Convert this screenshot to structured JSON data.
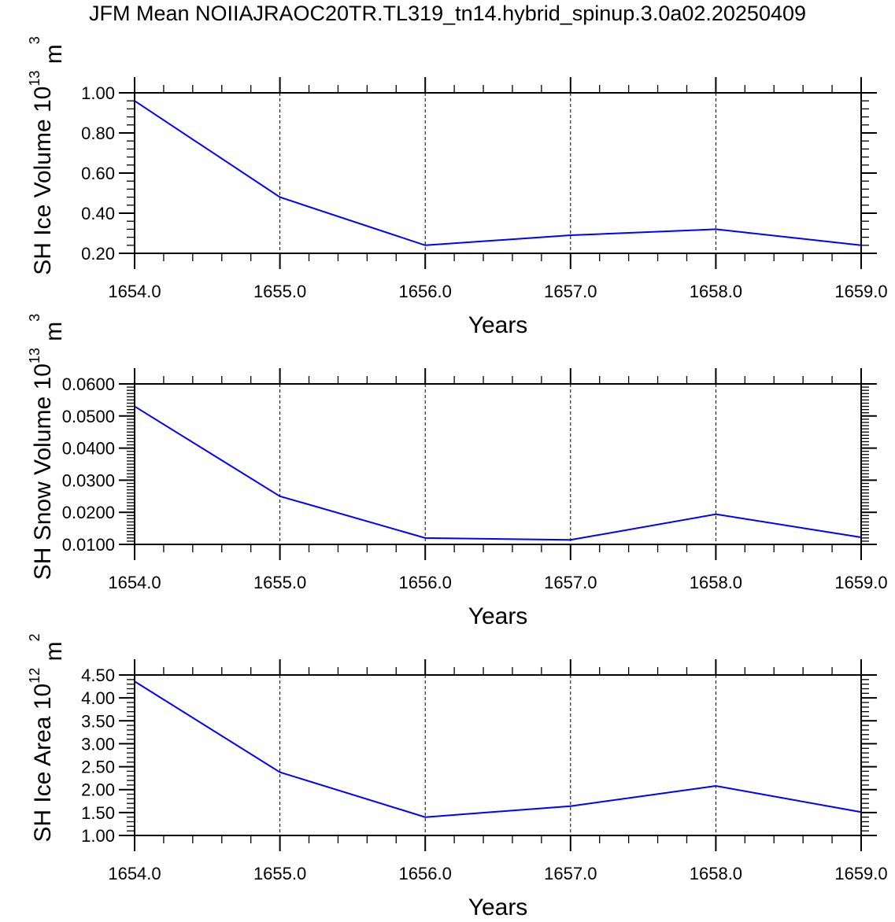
{
  "title": "JFM Mean NOIIAJRAOC20TR.TL319_tn14.hybrid_spinup.3.0a02.20250409",
  "line_color": "#0000ff",
  "chart_data": [
    {
      "type": "line",
      "xlabel": "Years",
      "ylabel": "SH Ice Volume",
      "ylabel_unit_base": "10",
      "ylabel_unit_exp": "13",
      "ylabel_unit": "m",
      "ylabel_unit_unit_exp": "3",
      "x": [
        1654,
        1655,
        1656,
        1657,
        1658,
        1659
      ],
      "y": [
        0.96,
        0.48,
        0.24,
        0.29,
        0.32,
        0.24
      ],
      "xlim": [
        1654,
        1659
      ],
      "ylim": [
        0.2,
        1.0
      ],
      "xticks": [
        "1654.0",
        "1655.0",
        "1656.0",
        "1657.0",
        "1658.0",
        "1659.0"
      ],
      "yticks": [
        0.2,
        0.4,
        0.6,
        0.8,
        1.0
      ],
      "ytick_labels": [
        "0.20",
        "0.40",
        "0.60",
        "0.80",
        "1.00"
      ],
      "yminor_step": 0.04,
      "grid": "vertical dashed at major x ticks"
    },
    {
      "type": "line",
      "xlabel": "Years",
      "ylabel": "SH Snow Volume",
      "ylabel_unit_base": "10",
      "ylabel_unit_exp": "13",
      "ylabel_unit": "m",
      "ylabel_unit_unit_exp": "3",
      "x": [
        1654,
        1655,
        1656,
        1657,
        1658,
        1659
      ],
      "y": [
        0.053,
        0.025,
        0.012,
        0.0114,
        0.0194,
        0.0122
      ],
      "xlim": [
        1654,
        1659
      ],
      "ylim": [
        0.01,
        0.06
      ],
      "xticks": [
        "1654.0",
        "1655.0",
        "1656.0",
        "1657.0",
        "1658.0",
        "1659.0"
      ],
      "yticks": [
        0.01,
        0.02,
        0.03,
        0.04,
        0.05,
        0.06
      ],
      "ytick_labels": [
        "0.0100",
        "0.0200",
        "0.0300",
        "0.0400",
        "0.0500",
        "0.0600"
      ],
      "yminor_step": 0.001,
      "grid": "vertical dashed at major x ticks"
    },
    {
      "type": "line",
      "xlabel": "Years",
      "ylabel": "SH Ice Area",
      "ylabel_unit_base": "10",
      "ylabel_unit_exp": "12",
      "ylabel_unit": "m",
      "ylabel_unit_unit_exp": "2",
      "x": [
        1654,
        1655,
        1656,
        1657,
        1658,
        1659
      ],
      "y": [
        4.36,
        2.38,
        1.4,
        1.64,
        2.08,
        1.51
      ],
      "xlim": [
        1654,
        1659
      ],
      "ylim": [
        1.0,
        4.5
      ],
      "xticks": [
        "1654.0",
        "1655.0",
        "1656.0",
        "1657.0",
        "1658.0",
        "1659.0"
      ],
      "yticks": [
        1.0,
        1.5,
        2.0,
        2.5,
        3.0,
        3.5,
        4.0,
        4.5
      ],
      "ytick_labels": [
        "1.00",
        "1.50",
        "2.00",
        "2.50",
        "3.00",
        "3.50",
        "4.00",
        "4.50"
      ],
      "yminor_step": 0.1,
      "grid": "vertical dashed at major x ticks"
    }
  ]
}
